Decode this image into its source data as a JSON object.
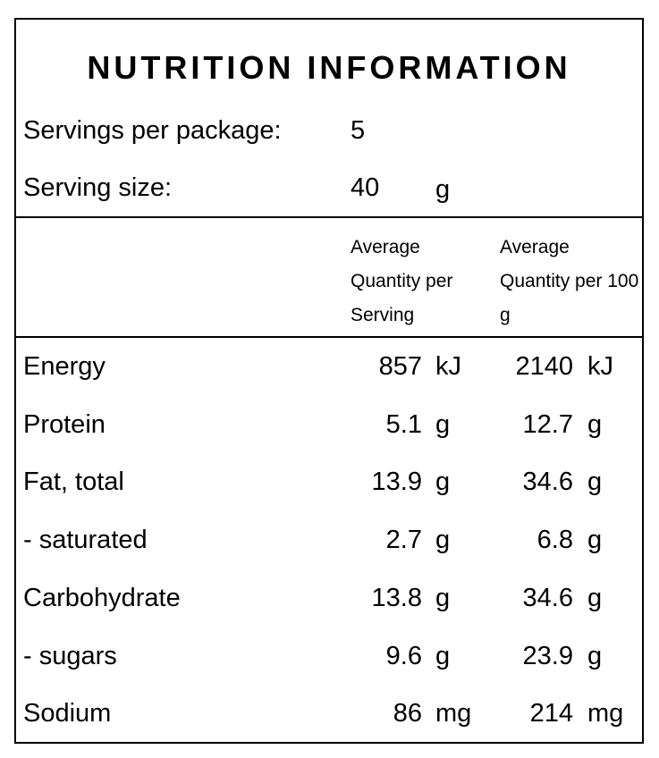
{
  "title": "NUTRITION INFORMATION",
  "servings": {
    "label": "Servings per package:",
    "value": 5
  },
  "serving_size": {
    "label": "Serving size:",
    "value": 40,
    "unit": "g"
  },
  "table": {
    "header": [
      "Average Quantity per Serving",
      "Average Quantity per 100 g"
    ],
    "rows": [
      {
        "name": "Energy",
        "per_serving": 857,
        "per_serving_unit": "kJ",
        "per_100g": 2140,
        "per_100g_unit": "kJ"
      },
      {
        "name": "Protein",
        "per_serving": 5.1,
        "per_serving_unit": "g",
        "per_100g": 12.7,
        "per_100g_unit": "g"
      },
      {
        "name": "Fat, total",
        "per_serving": 13.9,
        "per_serving_unit": "g",
        "per_100g": 34.6,
        "per_100g_unit": "g"
      },
      {
        "name": "- saturated",
        "per_serving": 2.7,
        "per_serving_unit": "g",
        "per_100g": 6.8,
        "per_100g_unit": "g"
      },
      {
        "name": "Carbohydrate",
        "per_serving": 13.8,
        "per_serving_unit": "g",
        "per_100g": 34.6,
        "per_100g_unit": "g"
      },
      {
        "name": "- sugars",
        "per_serving": 9.6,
        "per_serving_unit": "g",
        "per_100g": 23.9,
        "per_100g_unit": "g"
      },
      {
        "name": "Sodium",
        "per_serving": 86,
        "per_serving_unit": "mg",
        "per_100g": 214,
        "per_100g_unit": "mg"
      }
    ]
  }
}
